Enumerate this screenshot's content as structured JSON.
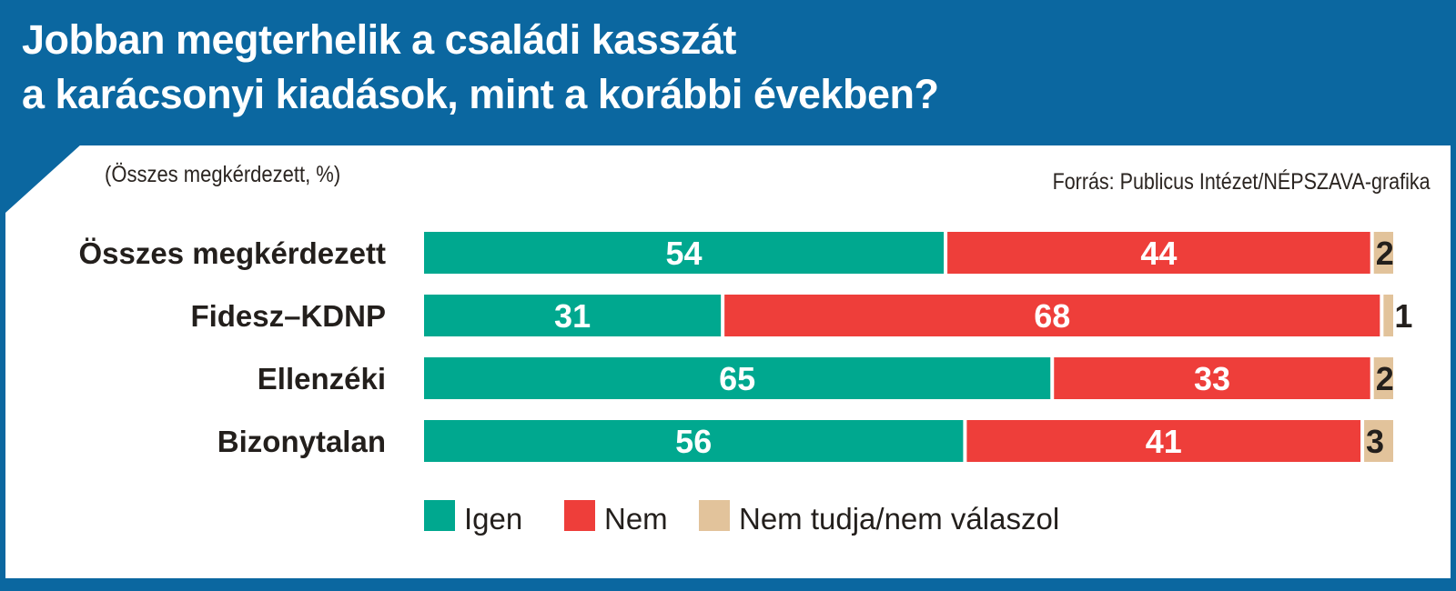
{
  "header": {
    "title_line1": "Jobban megterhelik a családi kasszát",
    "title_line2": "a karácsonyi kiadások, mint a korábbi években?"
  },
  "subtitle": "(Összes megkérdezett, %)",
  "source": "Forrás: Publicus Intézet/NÉPSZAVA-grafika",
  "chart_data": {
    "type": "bar",
    "stacked": true,
    "orientation": "horizontal",
    "title": "Jobban megterhelik a családi kasszát a karácsonyi kiadások, mint a korábbi években?",
    "categories": [
      "Összes megkérdezett",
      "Fidesz–KDNP",
      "Ellenzéki",
      "Bizonytalan"
    ],
    "series": [
      {
        "name": "Igen",
        "color": "#00a88f",
        "values": [
          54,
          31,
          65,
          56
        ]
      },
      {
        "name": "Nem",
        "color": "#ee3e3a",
        "values": [
          44,
          68,
          33,
          41
        ]
      },
      {
        "name": "Nem tudja/nem válaszol",
        "color": "#e2c39b",
        "values": [
          2,
          1,
          2,
          3
        ]
      }
    ],
    "xlim": [
      0,
      100
    ],
    "legend": "bottom"
  }
}
